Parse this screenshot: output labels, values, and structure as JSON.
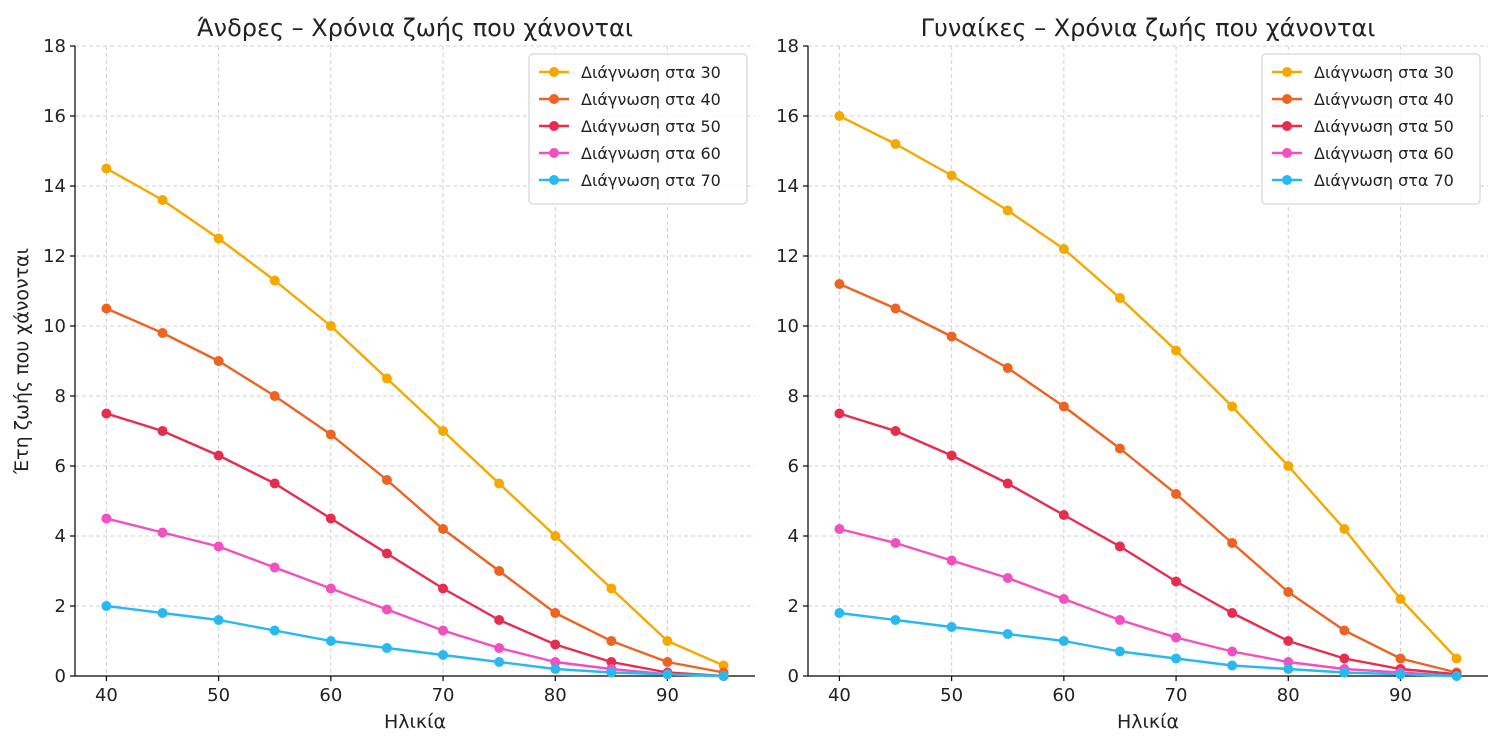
{
  "chart_data": [
    {
      "type": "line",
      "title": "Άνδρες – Χρόνια ζωής που χάνονται",
      "xlabel": "Ηλικία",
      "ylabel": "Έτη ζωής που χάνονται",
      "xlim": [
        37.2,
        97.8
      ],
      "ylim": [
        0,
        18
      ],
      "xticks": [
        40,
        50,
        60,
        70,
        80,
        90
      ],
      "yticks": [
        0,
        2,
        4,
        6,
        8,
        10,
        12,
        14,
        16,
        18
      ],
      "grid": true,
      "legend": "top-right",
      "x": [
        40,
        45,
        50,
        55,
        60,
        65,
        70,
        75,
        80,
        85,
        90,
        95
      ],
      "series": [
        {
          "name": "Διάγνωση στα 30",
          "color": "#F5A800",
          "values": [
            14.5,
            13.6,
            12.5,
            11.3,
            10.0,
            8.5,
            7.0,
            5.5,
            4.0,
            2.5,
            1.0,
            0.3
          ]
        },
        {
          "name": "Διάγνωση στα 40",
          "color": "#EB6423",
          "values": [
            10.5,
            9.8,
            9.0,
            8.0,
            6.9,
            5.6,
            4.2,
            3.0,
            1.8,
            1.0,
            0.4,
            0.1
          ]
        },
        {
          "name": "Διάγνωση στα 50",
          "color": "#E62D50",
          "values": [
            7.5,
            7.0,
            6.3,
            5.5,
            4.5,
            3.5,
            2.5,
            1.6,
            0.9,
            0.4,
            0.1,
            0.0
          ]
        },
        {
          "name": "Διάγνωση στα 60",
          "color": "#F250C0",
          "values": [
            4.5,
            4.1,
            3.7,
            3.1,
            2.5,
            1.9,
            1.3,
            0.8,
            0.4,
            0.2,
            0.05,
            0.0
          ]
        },
        {
          "name": "Διάγνωση στα 70",
          "color": "#28B9F0",
          "values": [
            2.0,
            1.8,
            1.6,
            1.3,
            1.0,
            0.8,
            0.6,
            0.4,
            0.2,
            0.1,
            0.05,
            0.0
          ]
        }
      ]
    },
    {
      "type": "line",
      "title": "Γυναίκες – Χρόνια ζωής που χάνονται",
      "xlabel": "Ηλικία",
      "ylabel": "",
      "xlim": [
        37.2,
        97.8
      ],
      "ylim": [
        0,
        18
      ],
      "xticks": [
        40,
        50,
        60,
        70,
        80,
        90
      ],
      "yticks": [
        0,
        2,
        4,
        6,
        8,
        10,
        12,
        14,
        16,
        18
      ],
      "grid": true,
      "legend": "top-right",
      "x": [
        40,
        45,
        50,
        55,
        60,
        65,
        70,
        75,
        80,
        85,
        90,
        95
      ],
      "series": [
        {
          "name": "Διάγνωση στα 30",
          "color": "#F5A800",
          "values": [
            16.0,
            15.2,
            14.3,
            13.3,
            12.2,
            10.8,
            9.3,
            7.7,
            6.0,
            4.2,
            2.2,
            0.5
          ]
        },
        {
          "name": "Διάγνωση στα 40",
          "color": "#EB6423",
          "values": [
            11.2,
            10.5,
            9.7,
            8.8,
            7.7,
            6.5,
            5.2,
            3.8,
            2.4,
            1.3,
            0.5,
            0.1
          ]
        },
        {
          "name": "Διάγνωση στα 50",
          "color": "#E62D50",
          "values": [
            7.5,
            7.0,
            6.3,
            5.5,
            4.6,
            3.7,
            2.7,
            1.8,
            1.0,
            0.5,
            0.2,
            0.05
          ]
        },
        {
          "name": "Διάγνωση στα 60",
          "color": "#F250C0",
          "values": [
            4.2,
            3.8,
            3.3,
            2.8,
            2.2,
            1.6,
            1.1,
            0.7,
            0.4,
            0.2,
            0.1,
            0.0
          ]
        },
        {
          "name": "Διάγνωση στα 70",
          "color": "#28B9F0",
          "values": [
            1.8,
            1.6,
            1.4,
            1.2,
            1.0,
            0.7,
            0.5,
            0.3,
            0.2,
            0.1,
            0.05,
            0.0
          ]
        }
      ]
    }
  ]
}
